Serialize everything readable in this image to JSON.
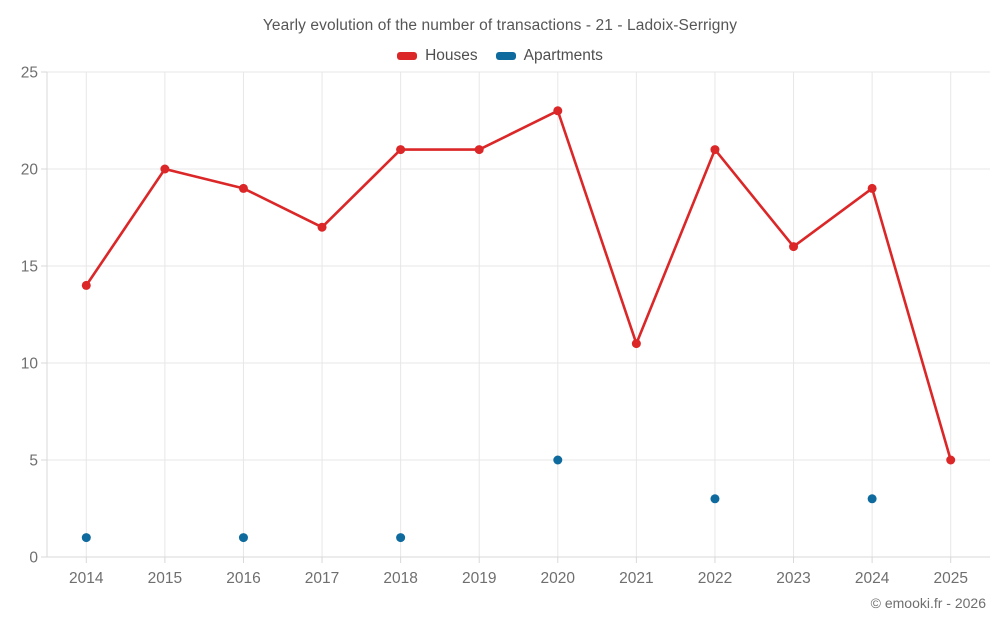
{
  "page": {
    "footer": "© emooki.fr - 2026"
  },
  "chart_data": {
    "type": "line",
    "title": "Yearly evolution of the number of transactions - 21 - Ladoix-Serrigny",
    "categories": [
      "2014",
      "2015",
      "2016",
      "2017",
      "2018",
      "2019",
      "2020",
      "2021",
      "2022",
      "2023",
      "2024",
      "2025"
    ],
    "series": [
      {
        "name": "Houses",
        "type": "line",
        "color": "#db2728",
        "values": [
          14,
          20,
          19,
          17,
          21,
          21,
          23,
          11,
          21,
          16,
          19,
          5
        ]
      },
      {
        "name": "Apartments",
        "type": "scatter",
        "color": "#0f6a9e",
        "values": [
          1,
          null,
          1,
          null,
          1,
          null,
          5,
          null,
          3,
          null,
          3,
          null
        ]
      }
    ],
    "xlabel": "",
    "ylabel": "",
    "ylim": [
      0,
      25
    ],
    "yticks": [
      0,
      5,
      10,
      15,
      20,
      25
    ],
    "grid": true,
    "legend_position": "top",
    "grid_color": "#e7e7e7",
    "axis_color": "#d8d8d8",
    "axis_label_color": "#6f6f6f"
  }
}
